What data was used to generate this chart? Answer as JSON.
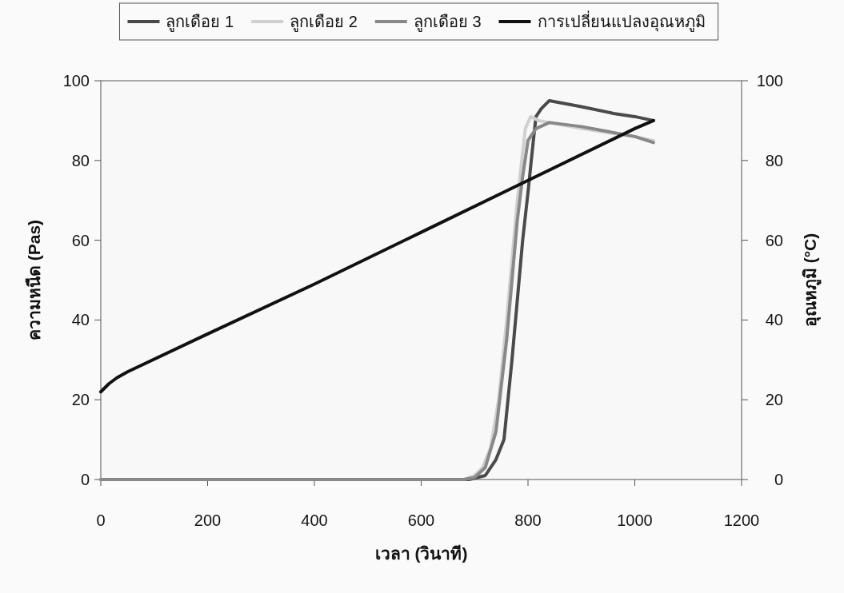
{
  "chart_data": {
    "type": "line",
    "xlabel": "เวลา (วินาที)",
    "ylabel": "ความหนืด (Pas)",
    "y2label": "อุณหภูมิ (°C)",
    "xlim": [
      0,
      1200
    ],
    "xticks": [
      0,
      200,
      400,
      600,
      800,
      1000,
      1200
    ],
    "ylim": [
      0,
      100
    ],
    "yticks": [
      0,
      20,
      40,
      60,
      80,
      100
    ],
    "y2lim": [
      0,
      100
    ],
    "y2ticks": [
      0,
      20,
      40,
      60,
      80,
      100
    ],
    "grid": false,
    "legend": "top",
    "marker": "none",
    "line_style": "solid",
    "series": [
      {
        "name": "ลูกเดือย 1",
        "color": "#4a4a4a",
        "x": [
          0,
          200,
          400,
          600,
          690,
          720,
          740,
          755,
          770,
          780,
          790,
          800,
          810,
          815,
          825,
          840,
          900,
          960,
          1000,
          1035
        ],
        "values": [
          0,
          0,
          0,
          0,
          0,
          1,
          5,
          10,
          30,
          45,
          60,
          72,
          85,
          91,
          93,
          95,
          93.5,
          91.8,
          91,
          90
        ]
      },
      {
        "name": "ลูกเดือย 2",
        "color": "#d0d0d0",
        "x": [
          0,
          200,
          400,
          600,
          680,
          700,
          715,
          730,
          745,
          760,
          770,
          780,
          790,
          795,
          805,
          820,
          900,
          1000,
          1035
        ],
        "values": [
          0,
          0,
          0,
          0,
          0,
          1,
          3,
          8,
          20,
          40,
          55,
          70,
          82,
          88,
          91,
          90,
          88,
          86,
          85
        ]
      },
      {
        "name": "ลูกเดือย 3",
        "color": "#888888",
        "x": [
          0,
          200,
          400,
          600,
          680,
          700,
          720,
          740,
          760,
          770,
          780,
          790,
          800,
          815,
          840,
          900,
          1000,
          1035
        ],
        "values": [
          0,
          0,
          0,
          0,
          0,
          0.5,
          3,
          12,
          35,
          50,
          65,
          76,
          85,
          88,
          89.5,
          88.5,
          86,
          84.5
        ]
      },
      {
        "name": "การเปลี่ยนแปลงอุณหภูมิ",
        "color": "#111111",
        "axis": "y2",
        "x": [
          0,
          15,
          30,
          50,
          200,
          400,
          600,
          800,
          1000,
          1035
        ],
        "values": [
          22,
          24,
          25.5,
          27,
          36.5,
          49,
          62,
          75,
          88,
          90
        ]
      }
    ]
  }
}
